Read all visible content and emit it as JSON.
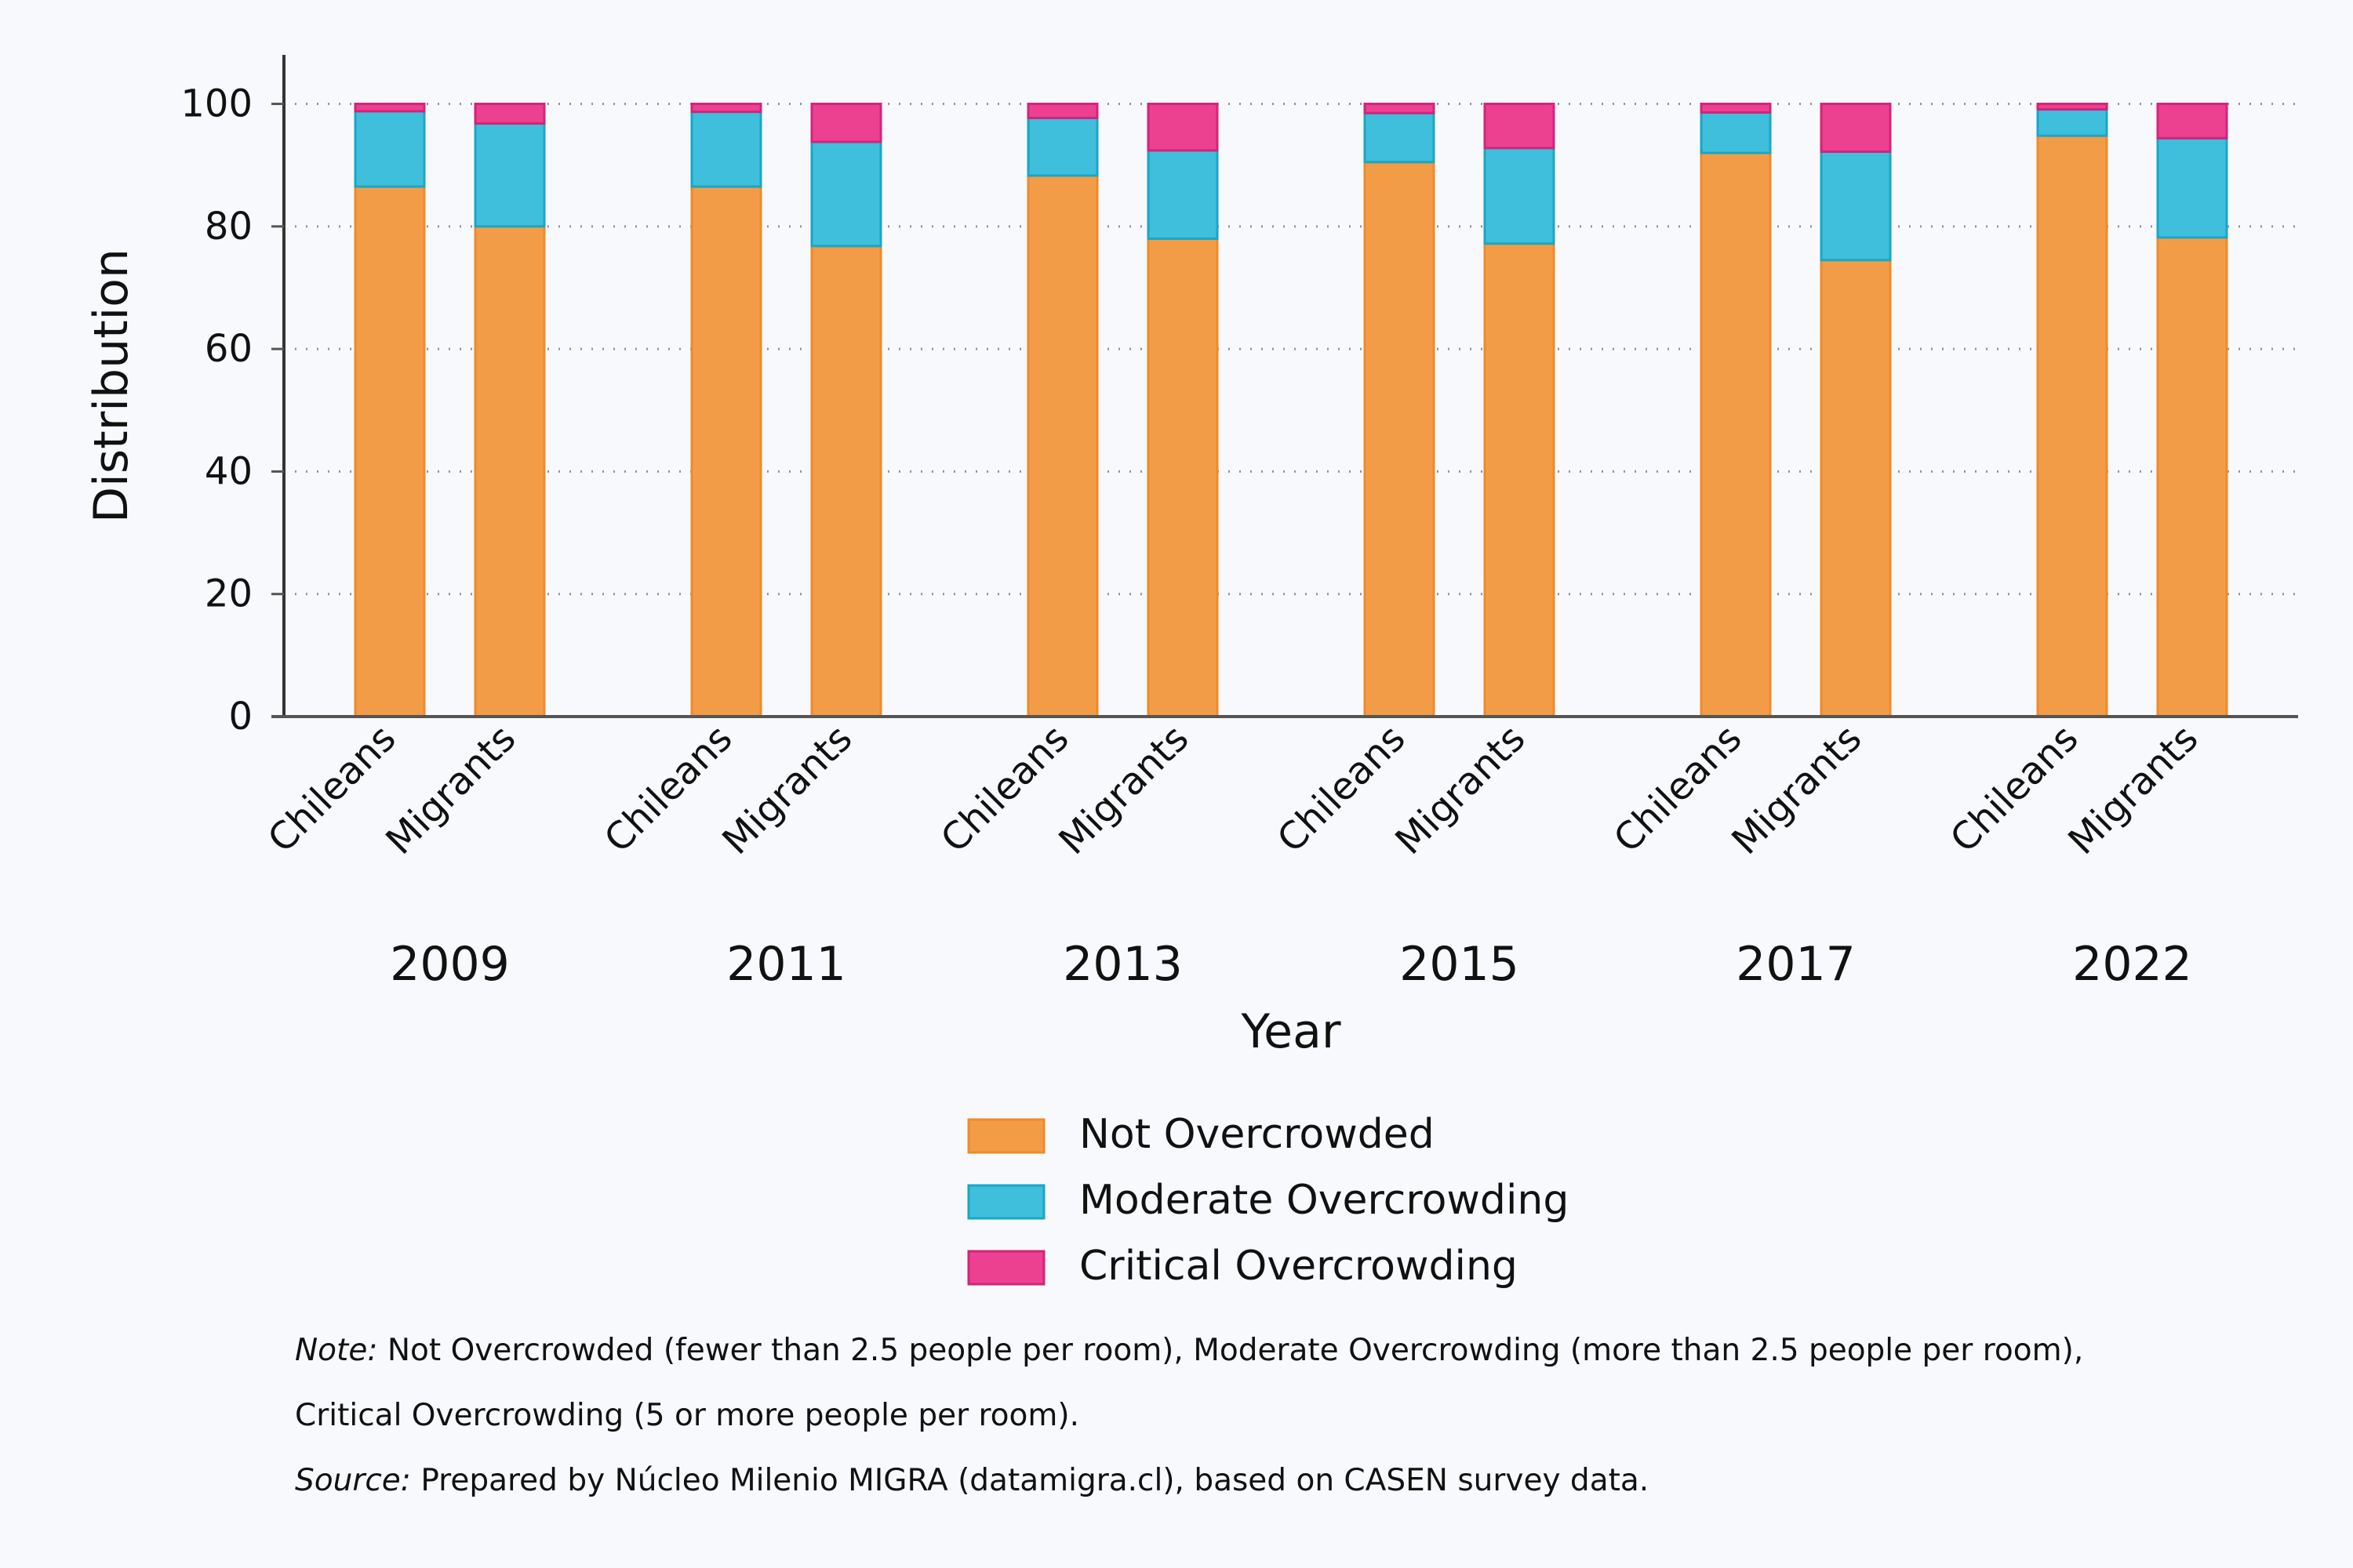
{
  "chart_data": {
    "type": "bar",
    "stacked": true,
    "ylabel": "Distribution",
    "xlabel": "Year",
    "ylim": [
      0,
      108
    ],
    "yticks": [
      0,
      20,
      40,
      60,
      80,
      100
    ],
    "grid": "horizontal-dotted",
    "legend_position": "bottom",
    "groups": [
      {
        "year": "2009",
        "bars": [
          {
            "category": "Chileans",
            "values": [
              86.5,
              12.3,
              1.2
            ]
          },
          {
            "category": "Migrants",
            "values": [
              80.0,
              16.8,
              3.2
            ]
          }
        ]
      },
      {
        "year": "2011",
        "bars": [
          {
            "category": "Chileans",
            "values": [
              86.5,
              12.2,
              1.3
            ]
          },
          {
            "category": "Migrants",
            "values": [
              76.8,
              17.0,
              6.2
            ]
          }
        ]
      },
      {
        "year": "2013",
        "bars": [
          {
            "category": "Chileans",
            "values": [
              88.3,
              9.4,
              2.3
            ]
          },
          {
            "category": "Migrants",
            "values": [
              78.0,
              14.4,
              7.6
            ]
          }
        ]
      },
      {
        "year": "2015",
        "bars": [
          {
            "category": "Chileans",
            "values": [
              90.5,
              8.0,
              1.5
            ]
          },
          {
            "category": "Migrants",
            "values": [
              77.2,
              15.6,
              7.2
            ]
          }
        ]
      },
      {
        "year": "2017",
        "bars": [
          {
            "category": "Chileans",
            "values": [
              92.0,
              6.6,
              1.4
            ]
          },
          {
            "category": "Migrants",
            "values": [
              74.5,
              17.7,
              7.8
            ]
          }
        ]
      },
      {
        "year": "2022",
        "bars": [
          {
            "category": "Chileans",
            "values": [
              94.8,
              4.3,
              0.9
            ]
          },
          {
            "category": "Migrants",
            "values": [
              78.2,
              16.2,
              5.6
            ]
          }
        ]
      }
    ],
    "series": [
      {
        "name": "Not Overcrowded",
        "color": "#f39c48",
        "stroke": "#ef8a2a"
      },
      {
        "name": "Moderate Overcrowding",
        "color": "#3fbfdc",
        "stroke": "#1aa6c8"
      },
      {
        "name": "Critical Overcrowding",
        "color": "#ec4190",
        "stroke": "#d4237a"
      }
    ]
  },
  "notes": {
    "note_label": "Note:",
    "note_text_1": " Not Overcrowded (fewer than 2.5 people per room), Moderate Overcrowding (more than 2.5 people per room),",
    "note_text_2": "Critical Overcrowding (5 or more people per room).",
    "source_label": "Source:",
    "source_text": " Prepared by Núcleo Milenio MIGRA (datamigra.cl), based on CASEN survey data."
  }
}
